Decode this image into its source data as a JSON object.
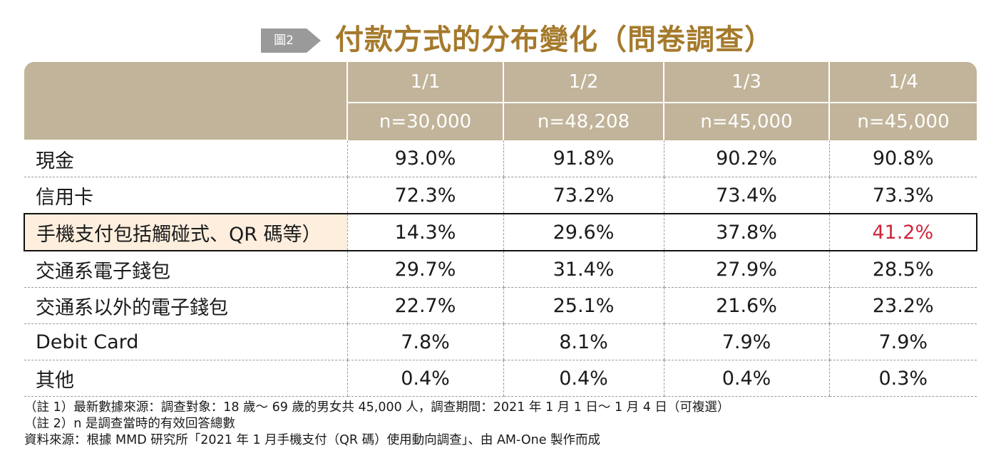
{
  "figure": {
    "tag": "圖2",
    "title": "付款方式的分布變化（問卷調查）"
  },
  "chart_data": {
    "type": "table",
    "columns": [
      {
        "period": "1/1",
        "n": "n=30,000"
      },
      {
        "period": "1/2",
        "n": "n=48,208"
      },
      {
        "period": "1/3",
        "n": "n=45,000"
      },
      {
        "period": "1/4",
        "n": "n=45,000"
      }
    ],
    "rows": [
      {
        "label": "現金",
        "values": [
          "93.0%",
          "91.8%",
          "90.2%",
          "90.8%"
        ]
      },
      {
        "label": "信用卡",
        "values": [
          "72.3%",
          "73.2%",
          "73.4%",
          "73.3%"
        ]
      },
      {
        "label": "手機支付包括觸碰式、QR 碼等）",
        "values": [
          "14.3%",
          "29.6%",
          "37.8%",
          "41.2%"
        ],
        "highlighted": true
      },
      {
        "label": "交通系電子錢包",
        "values": [
          "29.7%",
          "31.4%",
          "27.9%",
          "28.5%"
        ]
      },
      {
        "label": "交通系以外的電子錢包",
        "values": [
          "22.7%",
          "25.1%",
          "21.6%",
          "23.2%"
        ]
      },
      {
        "label": "Debit Card",
        "values": [
          "7.8%",
          "8.1%",
          "7.9%",
          "7.9%"
        ]
      },
      {
        "label": "其他",
        "values": [
          "0.4%",
          "0.4%",
          "0.4%",
          "0.3%"
        ]
      }
    ],
    "colors": {
      "header": "#c1b49a",
      "highlight_fill": "#fdeedd",
      "highlight_value": "#d0243a",
      "title": "#a57a2c"
    }
  },
  "notes": [
    "（註 1）最新數據來源：調查對象：18 歲～ 69 歲的男女共 45,000 人，調查期間：2021 年 1 月 1 日～ 1 月 4 日（可複選）",
    "（註 2）n 是調查當時的有效回答總數",
    "資料來源：根據 MMD 研究所「2021 年 1 月手機支付（QR 碼）使用動向調查」、由 AM-One 製作而成"
  ]
}
